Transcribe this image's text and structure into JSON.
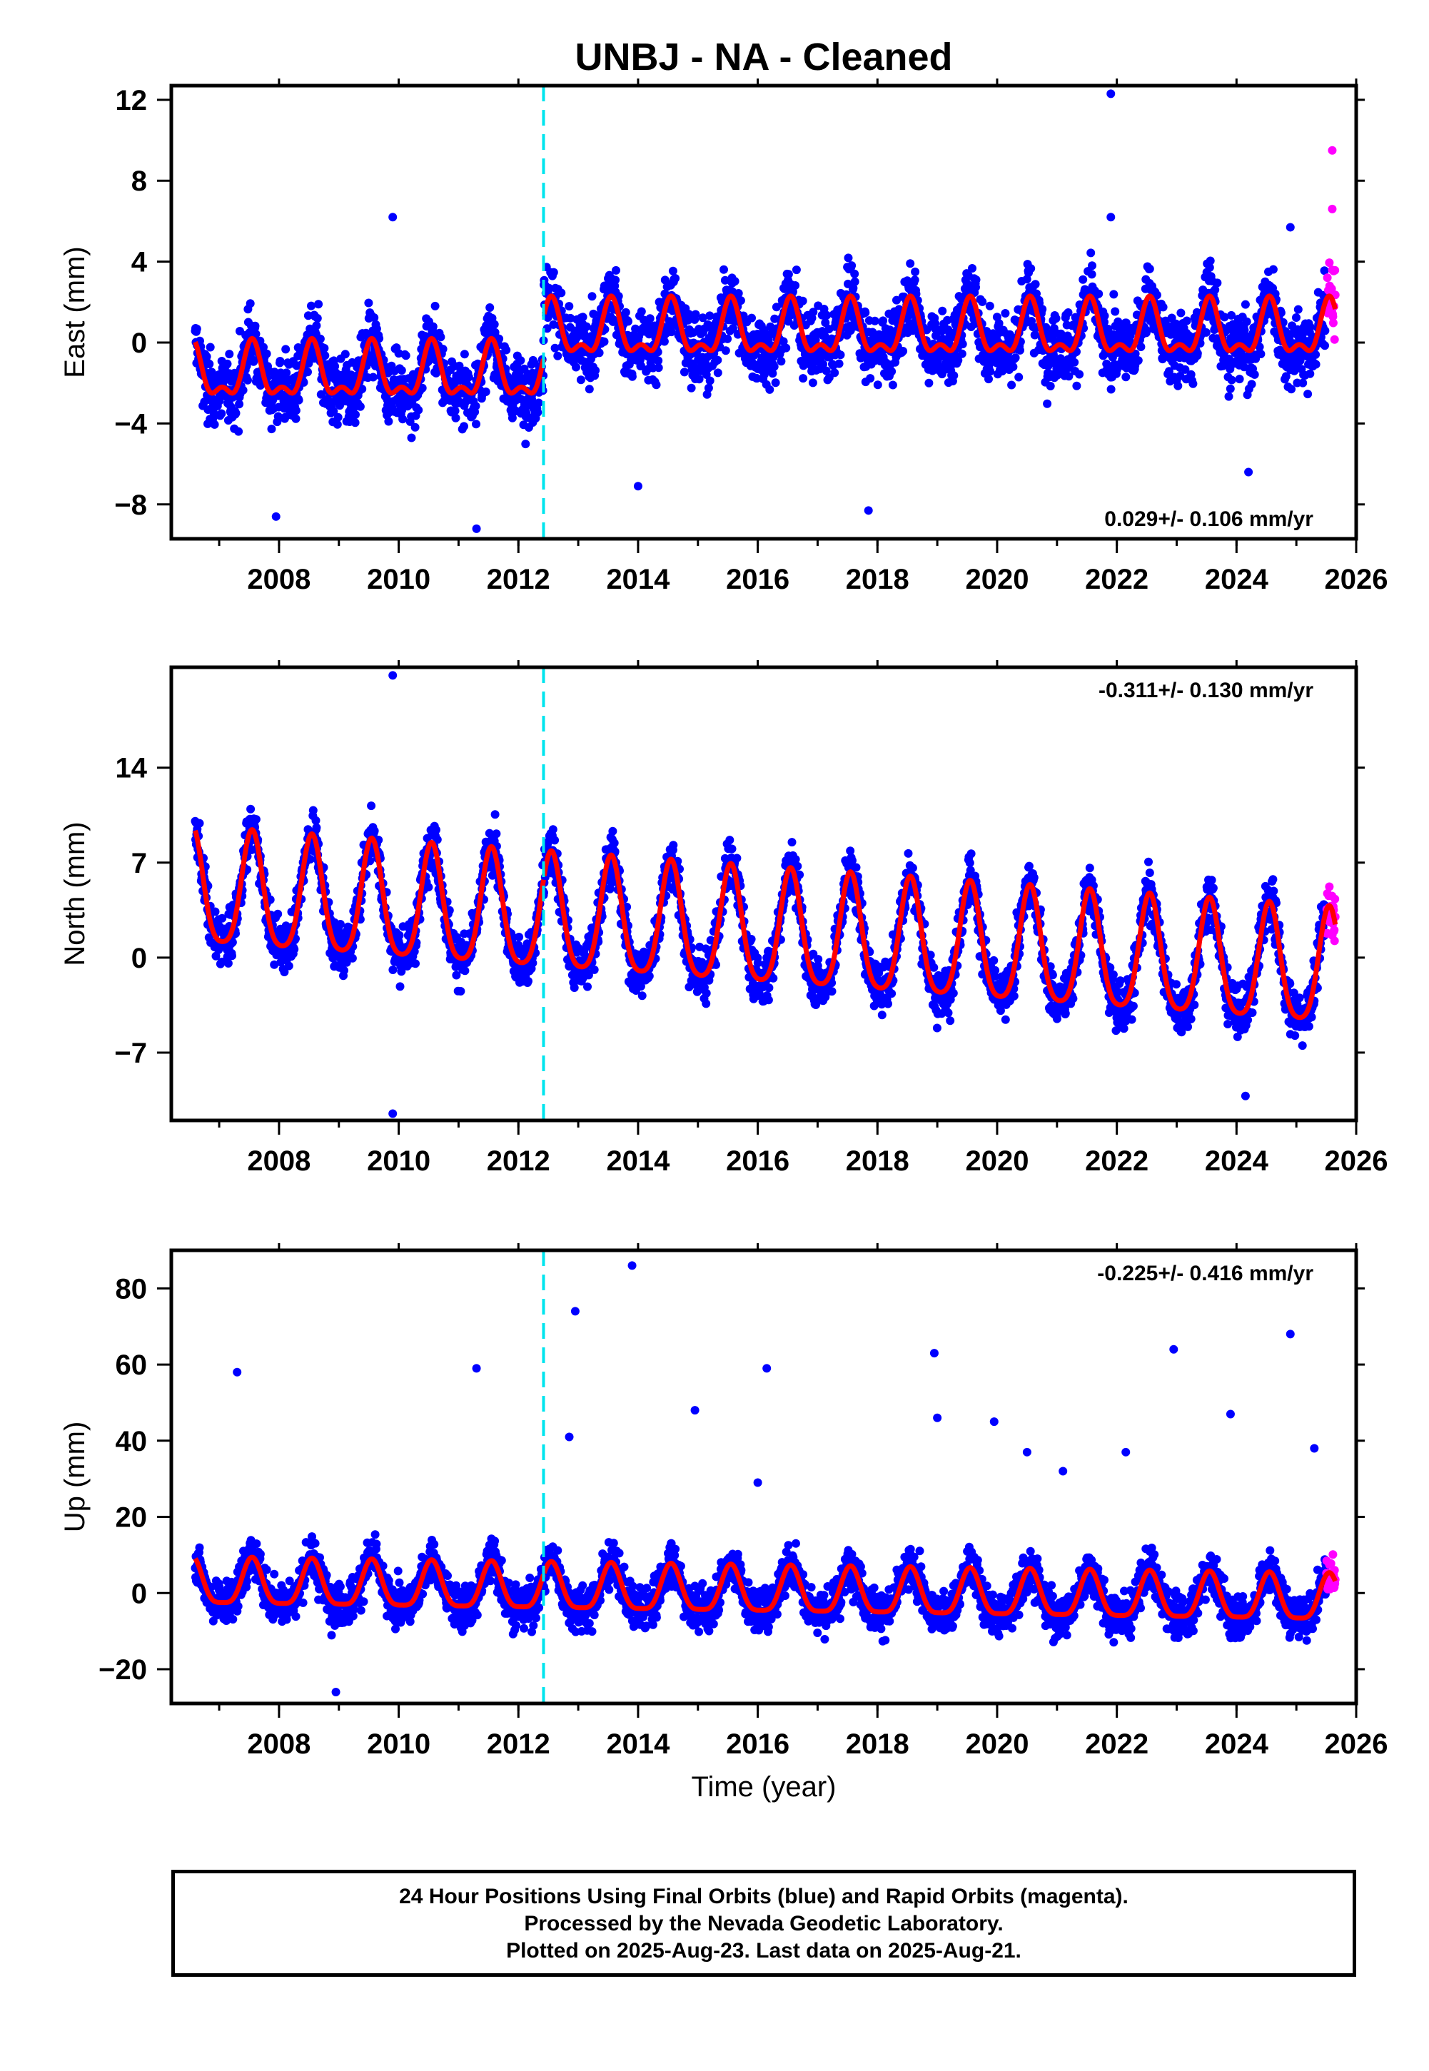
{
  "title": "UNBJ  - NA - Cleaned",
  "footer": {
    "line1": "24 Hour Positions Using Final Orbits (blue) and Rapid Orbits (magenta).",
    "line2": "Processed by the Nevada Geodetic Laboratory.",
    "line3": "Plotted on 2025-Aug-23. Last data on 2025-Aug-21."
  },
  "colors": {
    "final_orbits": "#0000ff",
    "rapid_orbits": "#ff00ff",
    "model_fit": "#ff0000",
    "equipment_change": "#00e5ee"
  },
  "chart_data": [
    {
      "type": "scatter",
      "ylabel": "East (mm)",
      "xlabel": "",
      "xlim": [
        2006.2,
        2026
      ],
      "ylim": [
        -9.7,
        12.7
      ],
      "x_ticks": [
        2008,
        2010,
        2012,
        2014,
        2016,
        2018,
        2020,
        2022,
        2024,
        2026
      ],
      "y_ticks": [
        -8,
        -4,
        0,
        4,
        8,
        12
      ],
      "rate_label": "0.029+/- 0.106 mm/yr",
      "rate_label_position": "bottom-right",
      "offset_epoch": 2012.42,
      "data_start": 2006.6,
      "data_end": 2025.65,
      "rapid_start": 2025.5,
      "model": {
        "offset_before": -1.6,
        "offset_after": 0.5,
        "annual_amplitude": 1.2,
        "semiannual_amplitude": 0.6,
        "phase_peak": 0.55
      },
      "noise_sd": 1.2,
      "outliers": [
        [
          2009.9,
          6.2
        ],
        [
          2021.9,
          12.3
        ],
        [
          2021.9,
          6.2
        ],
        [
          2024.9,
          5.7
        ],
        [
          2011.3,
          -9.2
        ],
        [
          2007.95,
          -8.6
        ],
        [
          2017.85,
          -8.3
        ],
        [
          2014.0,
          -7.1
        ],
        [
          2024.2,
          -6.4
        ],
        [
          2025.6,
          9.5
        ],
        [
          2025.6,
          6.6
        ]
      ],
      "grid": false,
      "legend": "none"
    },
    {
      "type": "scatter",
      "ylabel": "North (mm)",
      "xlabel": "",
      "xlim": [
        2006.2,
        2026
      ],
      "ylim": [
        -12,
        21.4
      ],
      "x_ticks": [
        2008,
        2010,
        2012,
        2014,
        2016,
        2018,
        2020,
        2022,
        2024,
        2026
      ],
      "y_ticks": [
        -7,
        0,
        7,
        14
      ],
      "rate_label": "-0.311+/- 0.130 mm/yr",
      "rate_label_position": "top-right",
      "offset_epoch": 2012.42,
      "data_start": 2006.6,
      "data_end": 2025.65,
      "rapid_start": 2025.5,
      "model": {
        "offset_before": 1.8,
        "offset_after": 1.8,
        "trend_per_year": -0.311,
        "annual_amplitude": 4.2,
        "semiannual_amplitude": 0.8,
        "phase_peak": 0.55
      },
      "noise_sd": 1.3,
      "outliers": [
        [
          2009.9,
          20.8
        ],
        [
          2009.9,
          -11.5
        ],
        [
          2024.15,
          -10.2
        ]
      ],
      "grid": false,
      "legend": "none"
    },
    {
      "type": "scatter",
      "ylabel": "Up (mm)",
      "xlabel": "Time (year)",
      "xlim": [
        2006.2,
        2026
      ],
      "ylim": [
        -29,
        90
      ],
      "x_ticks": [
        2008,
        2010,
        2012,
        2014,
        2016,
        2018,
        2020,
        2022,
        2024,
        2026
      ],
      "y_ticks": [
        -20,
        0,
        20,
        40,
        60,
        80
      ],
      "rate_label": "-0.225+/- 0.416 mm/yr",
      "rate_label_position": "top-right",
      "offset_epoch": 2012.42,
      "data_start": 2006.6,
      "data_end": 2025.65,
      "rapid_start": 2025.5,
      "model": {
        "offset_before": 0,
        "offset_after": 0,
        "trend_per_year": -0.225,
        "annual_amplitude": 6.0,
        "semiannual_amplitude": 1.5,
        "phase_peak": 0.55
      },
      "noise_sd": 4.0,
      "outliers": [
        [
          2007.3,
          58
        ],
        [
          2011.3,
          59
        ],
        [
          2012.85,
          41
        ],
        [
          2012.95,
          74
        ],
        [
          2013.9,
          86
        ],
        [
          2014.95,
          48
        ],
        [
          2016.0,
          29
        ],
        [
          2016.15,
          59
        ],
        [
          2018.95,
          63
        ],
        [
          2019.0,
          46
        ],
        [
          2019.95,
          45
        ],
        [
          2020.5,
          37
        ],
        [
          2021.1,
          32
        ],
        [
          2022.15,
          37
        ],
        [
          2022.95,
          64
        ],
        [
          2023.9,
          47
        ],
        [
          2024.9,
          68
        ],
        [
          2025.3,
          38
        ],
        [
          2008.95,
          -26
        ]
      ],
      "grid": false,
      "legend": "none"
    }
  ]
}
